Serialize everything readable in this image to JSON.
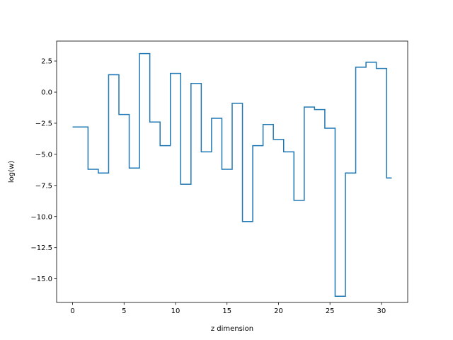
{
  "chart_data": {
    "type": "line",
    "drawstyle": "steps-mid",
    "title": "",
    "xlabel": "z dimension",
    "ylabel": "log(w)",
    "xlim": [
      -1.55,
      32.55
    ],
    "ylim": [
      -16.9,
      4.1
    ],
    "xticks": [
      0,
      5,
      10,
      15,
      20,
      25,
      30
    ],
    "xtick_labels": [
      "0",
      "5",
      "10",
      "15",
      "20",
      "25",
      "30"
    ],
    "yticks": [
      2.5,
      0.0,
      -2.5,
      -5.0,
      -7.5,
      -10.0,
      -12.5,
      -15.0
    ],
    "ytick_labels": [
      "2.5",
      "0.0",
      "−2.5",
      "−5.0",
      "−7.5",
      "−10.0",
      "−12.5",
      "−15.0"
    ],
    "grid": false,
    "line_color": "#1f77b4",
    "series": [
      {
        "x": [
          0,
          1,
          2,
          3,
          4,
          5,
          6,
          7,
          8,
          9,
          10,
          11,
          12,
          13,
          14,
          15,
          16,
          17,
          18,
          19,
          20,
          21,
          22,
          23,
          24,
          25,
          26,
          27,
          28,
          29,
          30,
          31
        ],
        "values": [
          -2.8,
          -2.8,
          -6.2,
          -6.5,
          1.4,
          -1.8,
          -6.1,
          3.1,
          -2.4,
          -4.3,
          1.5,
          -7.4,
          0.7,
          -4.8,
          -2.1,
          -6.2,
          -0.9,
          -10.4,
          -4.3,
          -2.6,
          -3.8,
          -4.8,
          -8.7,
          -1.2,
          -1.4,
          -2.9,
          -16.4,
          -6.5,
          2.0,
          2.4,
          1.9,
          -6.9
        ]
      }
    ]
  }
}
